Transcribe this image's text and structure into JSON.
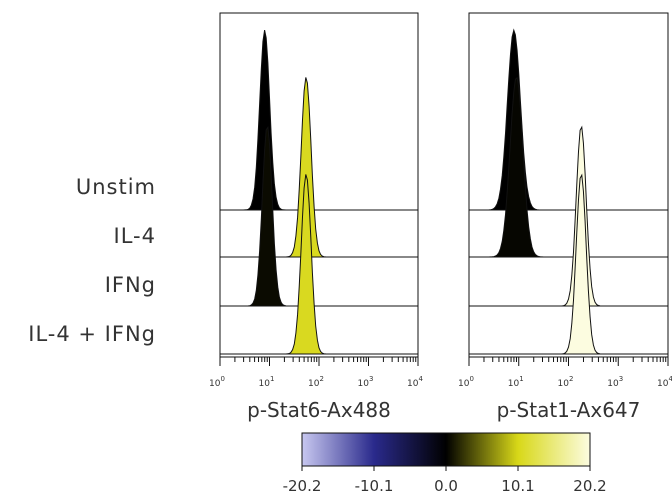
{
  "chart_data": {
    "type": "histogram",
    "x_scale": "log",
    "x_range": [
      1,
      10000
    ],
    "x_tick_labels": [
      "10^0",
      "10^1",
      "10^2",
      "10^3",
      "10^4"
    ],
    "row_labels": [
      "Unstim",
      "IL-4",
      "IFNg",
      "IL-4 + IFNg"
    ],
    "panels": [
      {
        "xlabel": "p-Stat6-Ax488",
        "series": [
          {
            "values": {
              "peak": 8,
              "spread": 0.1,
              "fold_change": 0.0
            }
          },
          {
            "values": {
              "peak": 55,
              "spread": 0.1,
              "fold_change": 10.5
            }
          },
          {
            "values": {
              "peak": 9,
              "spread": 0.1,
              "fold_change": 0.5
            }
          },
          {
            "values": {
              "peak": 55,
              "spread": 0.1,
              "fold_change": 10.5
            }
          }
        ]
      },
      {
        "xlabel": "p-Stat1-Ax647",
        "series": [
          {
            "values": {
              "peak": 8,
              "spread": 0.13,
              "fold_change": 0.0
            }
          },
          {
            "values": {
              "peak": 9,
              "spread": 0.13,
              "fold_change": 0.3
            }
          },
          {
            "values": {
              "peak": 180,
              "spread": 0.1,
              "fold_change": 20.2
            }
          },
          {
            "values": {
              "peak": 180,
              "spread": 0.1,
              "fold_change": 20.2
            }
          }
        ]
      }
    ],
    "colorbar": {
      "range": [
        -20.2,
        20.2
      ],
      "tick_labels": [
        "-20.2",
        "-10.1",
        "0.0",
        "10.1",
        "20.2"
      ],
      "tick_values": [
        -20.2,
        -10.1,
        0,
        10.1,
        20.2
      ],
      "stops": [
        "#c8c8f0",
        "#2a2a8c",
        "#000000",
        "#d8d818",
        "#fcfce0"
      ]
    }
  }
}
